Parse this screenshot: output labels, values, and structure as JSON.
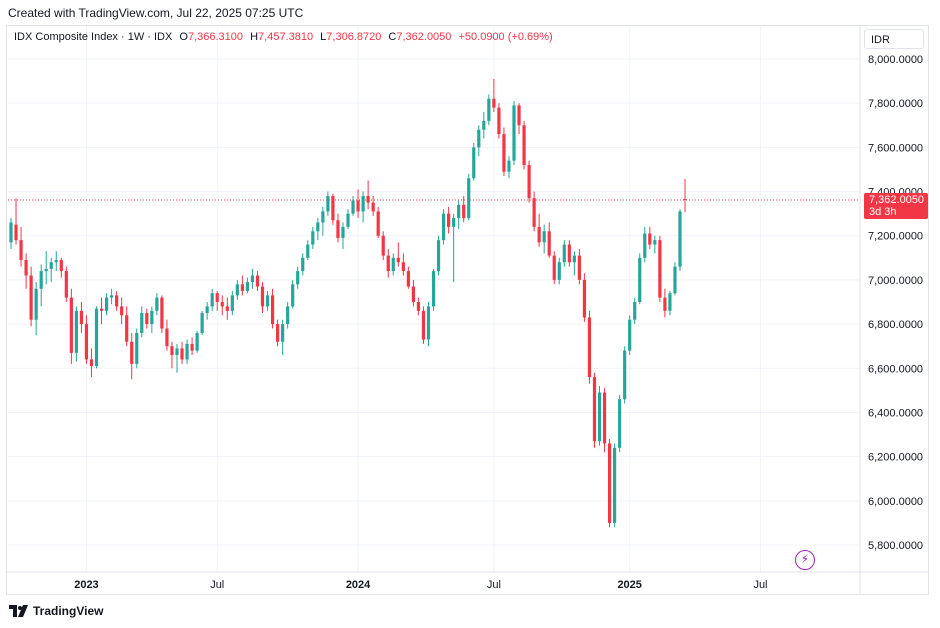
{
  "header": {
    "created_text": "Created with TradingView.com, Jul 22, 2025 07:25 UTC"
  },
  "legend": {
    "symbol": "IDX Composite Index · 1W · IDX",
    "open_label": "O",
    "open": "7,366.3100",
    "high_label": "H",
    "high": "7,457.3810",
    "low_label": "L",
    "low": "7,306.8720",
    "close_label": "C",
    "close": "7,362.0050",
    "change": "+50.0900 (+0.69%)"
  },
  "currency": "IDR",
  "price_tag": {
    "price": "7,362.0050",
    "countdown": "3d 3h"
  },
  "footer": {
    "brand": "TradingView"
  },
  "colors": {
    "up": "#26a69a",
    "down": "#f23645",
    "grid": "#f0f3fa",
    "text": "#131722"
  },
  "chart_data": {
    "type": "candlestick",
    "title": "",
    "ylim": [
      5700,
      8050
    ],
    "y_ticks": [
      "8,000.0000",
      "7,800.0000",
      "7,600.0000",
      "7,400.0000",
      "7,200.0000",
      "7,000.0000",
      "6,800.0000",
      "6,600.0000",
      "6,400.0000",
      "6,200.0000",
      "6,000.0000",
      "5,800.0000"
    ],
    "y_tick_values": [
      8000,
      7800,
      7600,
      7400,
      7200,
      7000,
      6800,
      6600,
      6400,
      6200,
      6000,
      5800
    ],
    "x_ticks": [
      "2023",
      "Jul",
      "2024",
      "Jul",
      "2025",
      "Jul"
    ],
    "x_tick_index": [
      15,
      41,
      69,
      96,
      123,
      149
    ],
    "last_close": 7362.005,
    "candles": [
      [
        7170,
        7280,
        7140,
        7260
      ],
      [
        7250,
        7370,
        7160,
        7180
      ],
      [
        7180,
        7240,
        7060,
        7090
      ],
      [
        7090,
        7120,
        6960,
        7020
      ],
      [
        7020,
        7060,
        6790,
        6820
      ],
      [
        6820,
        6990,
        6750,
        6960
      ],
      [
        6960,
        7070,
        6880,
        7040
      ],
      [
        7040,
        7130,
        6980,
        7050
      ],
      [
        7050,
        7100,
        6990,
        7080
      ],
      [
        7080,
        7130,
        7040,
        7090
      ],
      [
        7090,
        7100,
        7010,
        7040
      ],
      [
        7040,
        7060,
        6900,
        6920
      ],
      [
        6920,
        6960,
        6620,
        6670
      ],
      [
        6670,
        6880,
        6630,
        6860
      ],
      [
        6860,
        6900,
        6760,
        6800
      ],
      [
        6800,
        6840,
        6620,
        6640
      ],
      [
        6640,
        6690,
        6560,
        6610
      ],
      [
        6610,
        6880,
        6600,
        6870
      ],
      [
        6870,
        6920,
        6800,
        6860
      ],
      [
        6860,
        6940,
        6840,
        6920
      ],
      [
        6920,
        6960,
        6890,
        6930
      ],
      [
        6930,
        6950,
        6860,
        6880
      ],
      [
        6880,
        6920,
        6800,
        6840
      ],
      [
        6840,
        6880,
        6700,
        6720
      ],
      [
        6720,
        6760,
        6550,
        6620
      ],
      [
        6620,
        6780,
        6600,
        6760
      ],
      [
        6760,
        6880,
        6740,
        6850
      ],
      [
        6850,
        6870,
        6780,
        6800
      ],
      [
        6800,
        6880,
        6760,
        6860
      ],
      [
        6860,
        6940,
        6840,
        6920
      ],
      [
        6920,
        6930,
        6760,
        6780
      ],
      [
        6780,
        6820,
        6680,
        6700
      ],
      [
        6700,
        6720,
        6600,
        6660
      ],
      [
        6660,
        6710,
        6580,
        6690
      ],
      [
        6690,
        6720,
        6620,
        6640
      ],
      [
        6640,
        6730,
        6620,
        6710
      ],
      [
        6710,
        6740,
        6660,
        6680
      ],
      [
        6680,
        6770,
        6670,
        6760
      ],
      [
        6760,
        6860,
        6750,
        6850
      ],
      [
        6850,
        6900,
        6820,
        6880
      ],
      [
        6880,
        6960,
        6860,
        6940
      ],
      [
        6940,
        6950,
        6860,
        6900
      ],
      [
        6900,
        6930,
        6840,
        6880
      ],
      [
        6880,
        6920,
        6820,
        6860
      ],
      [
        6860,
        6950,
        6840,
        6930
      ],
      [
        6930,
        7000,
        6910,
        6980
      ],
      [
        6980,
        7020,
        6930,
        6950
      ],
      [
        6950,
        7010,
        6940,
        6990
      ],
      [
        6990,
        7050,
        6960,
        7020
      ],
      [
        7020,
        7040,
        6950,
        6970
      ],
      [
        6970,
        6990,
        6850,
        6880
      ],
      [
        6880,
        6950,
        6860,
        6930
      ],
      [
        6930,
        6960,
        6780,
        6800
      ],
      [
        6800,
        6820,
        6700,
        6720
      ],
      [
        6720,
        6820,
        6660,
        6800
      ],
      [
        6800,
        6900,
        6780,
        6880
      ],
      [
        6880,
        7000,
        6870,
        6980
      ],
      [
        6980,
        7060,
        6960,
        7040
      ],
      [
        7040,
        7120,
        7020,
        7100
      ],
      [
        7100,
        7180,
        7090,
        7160
      ],
      [
        7160,
        7240,
        7140,
        7220
      ],
      [
        7220,
        7280,
        7180,
        7260
      ],
      [
        7260,
        7330,
        7200,
        7310
      ],
      [
        7310,
        7400,
        7290,
        7380
      ],
      [
        7380,
        7390,
        7250,
        7270
      ],
      [
        7270,
        7300,
        7170,
        7190
      ],
      [
        7190,
        7260,
        7140,
        7240
      ],
      [
        7240,
        7320,
        7230,
        7300
      ],
      [
        7300,
        7380,
        7290,
        7360
      ],
      [
        7360,
        7410,
        7280,
        7310
      ],
      [
        7310,
        7400,
        7260,
        7380
      ],
      [
        7380,
        7450,
        7320,
        7350
      ],
      [
        7350,
        7380,
        7290,
        7310
      ],
      [
        7310,
        7330,
        7190,
        7200
      ],
      [
        7200,
        7220,
        7090,
        7110
      ],
      [
        7110,
        7140,
        7010,
        7040
      ],
      [
        7040,
        7120,
        7020,
        7100
      ],
      [
        7100,
        7170,
        7060,
        7080
      ],
      [
        7080,
        7120,
        7020,
        7040
      ],
      [
        7040,
        7060,
        6960,
        6970
      ],
      [
        6970,
        7000,
        6880,
        6900
      ],
      [
        6900,
        6920,
        6840,
        6860
      ],
      [
        6860,
        6880,
        6710,
        6730
      ],
      [
        6730,
        6900,
        6700,
        6880
      ],
      [
        6880,
        7050,
        6860,
        7040
      ],
      [
        7040,
        7200,
        7020,
        7180
      ],
      [
        7180,
        7320,
        7160,
        7300
      ],
      [
        7300,
        7330,
        7210,
        7240
      ],
      [
        7240,
        7300,
        6990,
        7280
      ],
      [
        7280,
        7360,
        7230,
        7340
      ],
      [
        7340,
        7380,
        7260,
        7280
      ],
      [
        7280,
        7480,
        7270,
        7460
      ],
      [
        7460,
        7620,
        7450,
        7600
      ],
      [
        7600,
        7700,
        7560,
        7680
      ],
      [
        7680,
        7760,
        7640,
        7720
      ],
      [
        7720,
        7840,
        7700,
        7820
      ],
      [
        7820,
        7910,
        7760,
        7780
      ],
      [
        7780,
        7800,
        7640,
        7660
      ],
      [
        7660,
        7690,
        7470,
        7490
      ],
      [
        7490,
        7560,
        7460,
        7540
      ],
      [
        7540,
        7810,
        7520,
        7790
      ],
      [
        7790,
        7800,
        7660,
        7700
      ],
      [
        7700,
        7720,
        7500,
        7520
      ],
      [
        7520,
        7540,
        7350,
        7370
      ],
      [
        7370,
        7400,
        7220,
        7240
      ],
      [
        7240,
        7300,
        7150,
        7170
      ],
      [
        7170,
        7250,
        7120,
        7220
      ],
      [
        7220,
        7260,
        7100,
        7110
      ],
      [
        7110,
        7130,
        6980,
        7000
      ],
      [
        7000,
        7100,
        6980,
        7080
      ],
      [
        7080,
        7180,
        7060,
        7160
      ],
      [
        7160,
        7180,
        7060,
        7080
      ],
      [
        7080,
        7130,
        7020,
        7110
      ],
      [
        7110,
        7140,
        6980,
        7000
      ],
      [
        7000,
        7030,
        6810,
        6830
      ],
      [
        6830,
        6860,
        6530,
        6560
      ],
      [
        6560,
        6580,
        6240,
        6270
      ],
      [
        6270,
        6520,
        6250,
        6490
      ],
      [
        6490,
        6510,
        6220,
        6260
      ],
      [
        6260,
        6280,
        5880,
        5900
      ],
      [
        5900,
        6260,
        5880,
        6240
      ],
      [
        6240,
        6480,
        6220,
        6460
      ],
      [
        6460,
        6700,
        6440,
        6680
      ],
      [
        6680,
        6840,
        6660,
        6820
      ],
      [
        6820,
        6920,
        6800,
        6900
      ],
      [
        6900,
        7120,
        6890,
        7100
      ],
      [
        7100,
        7240,
        7080,
        7210
      ],
      [
        7210,
        7240,
        7140,
        7160
      ],
      [
        7160,
        7200,
        7120,
        7180
      ],
      [
        7180,
        7200,
        6900,
        6920
      ],
      [
        6920,
        6960,
        6830,
        6860
      ],
      [
        6860,
        6950,
        6840,
        6940
      ],
      [
        6940,
        7080,
        6930,
        7060
      ],
      [
        7060,
        7320,
        7040,
        7310
      ],
      [
        7366.31,
        7457.381,
        7306.872,
        7362.005
      ]
    ]
  }
}
